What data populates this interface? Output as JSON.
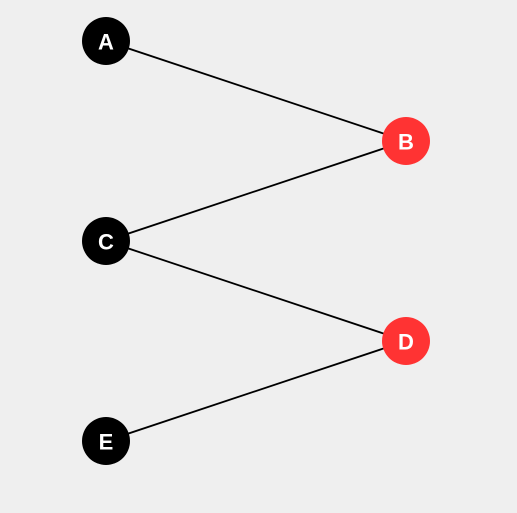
{
  "colors": {
    "background": "#efefef",
    "left_partition": "#000000",
    "right_partition": "#ff3333",
    "edge": "#000000",
    "label": "#ffffff"
  },
  "nodes": [
    {
      "id": "A",
      "label": "A",
      "group": "left"
    },
    {
      "id": "B",
      "label": "B",
      "group": "right"
    },
    {
      "id": "C",
      "label": "C",
      "group": "left"
    },
    {
      "id": "D",
      "label": "D",
      "group": "right"
    },
    {
      "id": "E",
      "label": "E",
      "group": "left"
    }
  ],
  "edges": [
    {
      "from": "A",
      "to": "B"
    },
    {
      "from": "C",
      "to": "B"
    },
    {
      "from": "C",
      "to": "D"
    },
    {
      "from": "E",
      "to": "D"
    }
  ]
}
